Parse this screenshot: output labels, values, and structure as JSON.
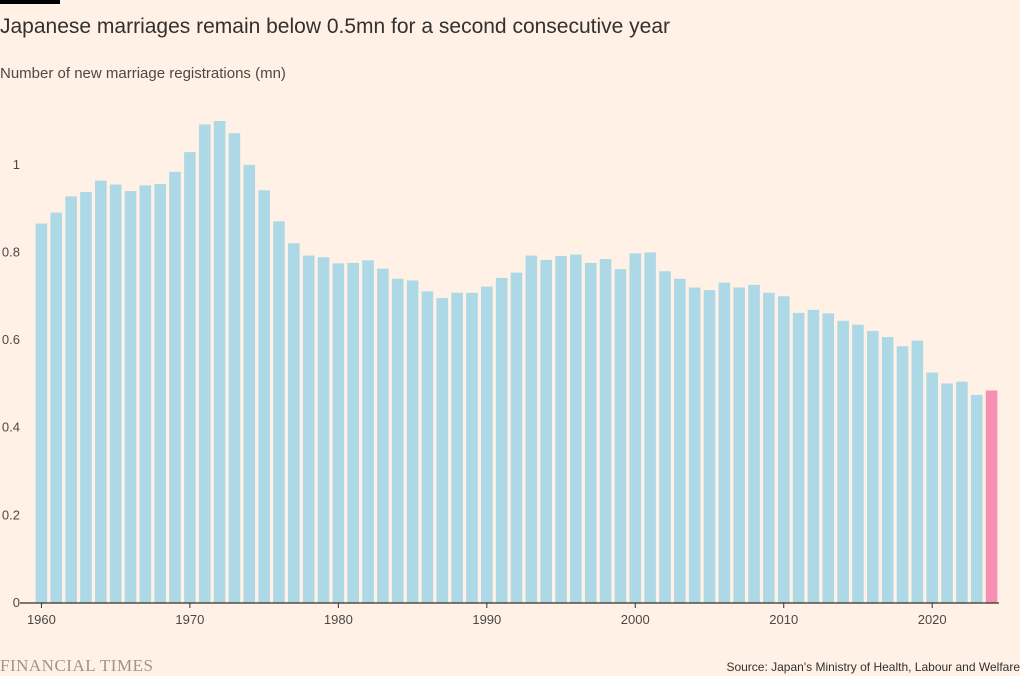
{
  "header": {
    "title": "Japanese marriages remain below 0.5mn for a second consecutive year",
    "subtitle": "Number of new marriage registrations (mn)"
  },
  "footer": {
    "brand": "FINANCIAL TIMES",
    "source": "Source: Japan's Ministry of Health, Labour and Welfare"
  },
  "colors": {
    "background": "#fff1e5",
    "bar": "#add8e6",
    "highlight": "#f78fb3",
    "axis": "#33302e"
  },
  "chart_data": {
    "type": "bar",
    "title": "Japanese marriages remain below 0.5mn for a second consecutive year",
    "ylabel": "Number of new marriage registrations (mn)",
    "xlabel": "",
    "ylim": [
      0,
      1.1
    ],
    "yticks": [
      0,
      0.2,
      0.4,
      0.6,
      0.8,
      1
    ],
    "ytick_labels": [
      "0",
      "0.2",
      "0.4",
      "0.6",
      "0.8",
      "1"
    ],
    "xticks": [
      1960,
      1970,
      1980,
      1990,
      2000,
      2010,
      2020
    ],
    "grid": false,
    "highlight_year": 2024,
    "x": [
      1960,
      1961,
      1962,
      1963,
      1964,
      1965,
      1966,
      1967,
      1968,
      1969,
      1970,
      1971,
      1972,
      1973,
      1974,
      1975,
      1976,
      1977,
      1978,
      1979,
      1980,
      1981,
      1982,
      1983,
      1984,
      1985,
      1986,
      1987,
      1988,
      1989,
      1990,
      1991,
      1992,
      1993,
      1994,
      1995,
      1996,
      1997,
      1998,
      1999,
      2000,
      2001,
      2002,
      2003,
      2004,
      2005,
      2006,
      2007,
      2008,
      2009,
      2010,
      2011,
      2012,
      2013,
      2014,
      2015,
      2016,
      2017,
      2018,
      2019,
      2020,
      2021,
      2022,
      2023,
      2024
    ],
    "values": [
      0.866,
      0.891,
      0.928,
      0.938,
      0.964,
      0.955,
      0.94,
      0.953,
      0.956,
      0.984,
      1.029,
      1.092,
      1.1,
      1.072,
      1.0,
      0.942,
      0.871,
      0.821,
      0.793,
      0.789,
      0.775,
      0.776,
      0.782,
      0.763,
      0.74,
      0.736,
      0.711,
      0.696,
      0.708,
      0.708,
      0.722,
      0.742,
      0.754,
      0.793,
      0.783,
      0.792,
      0.795,
      0.776,
      0.785,
      0.762,
      0.798,
      0.8,
      0.757,
      0.74,
      0.72,
      0.714,
      0.731,
      0.72,
      0.726,
      0.708,
      0.7,
      0.662,
      0.669,
      0.661,
      0.644,
      0.635,
      0.621,
      0.607,
      0.586,
      0.599,
      0.526,
      0.501,
      0.505,
      0.475,
      0.485
    ]
  }
}
